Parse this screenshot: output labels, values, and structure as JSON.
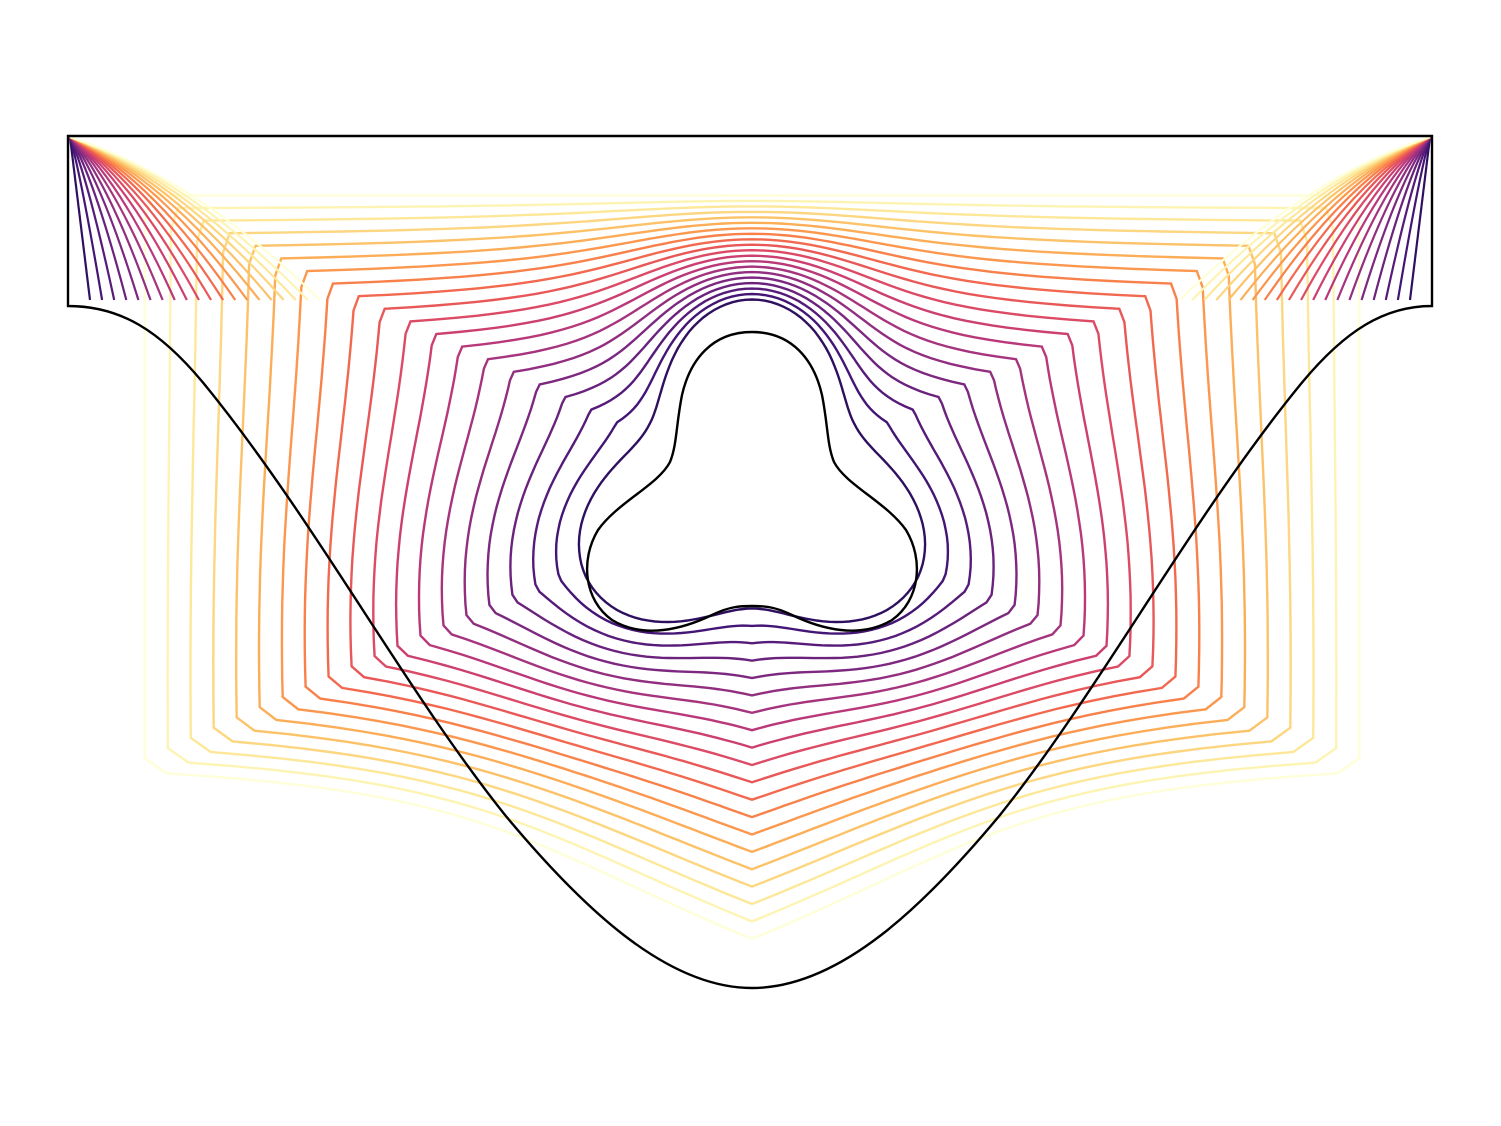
{
  "figure": {
    "kind": "contour-plot",
    "colormap": {
      "name": "magma",
      "levels": [
        "#feffd8",
        "#fdf4b4",
        "#fde89a",
        "#fcd681",
        "#fcc269",
        "#fcad58",
        "#fb974e",
        "#f8814b",
        "#f2694f",
        "#e95858",
        "#dc4a65",
        "#cc3f71",
        "#b9387a",
        "#a5337e",
        "#912e80",
        "#7d2880",
        "#6a227d",
        "#561b79",
        "#431574",
        "#2f0f5f"
      ]
    },
    "boundary_color": "#000000",
    "contour_count": 20
  }
}
